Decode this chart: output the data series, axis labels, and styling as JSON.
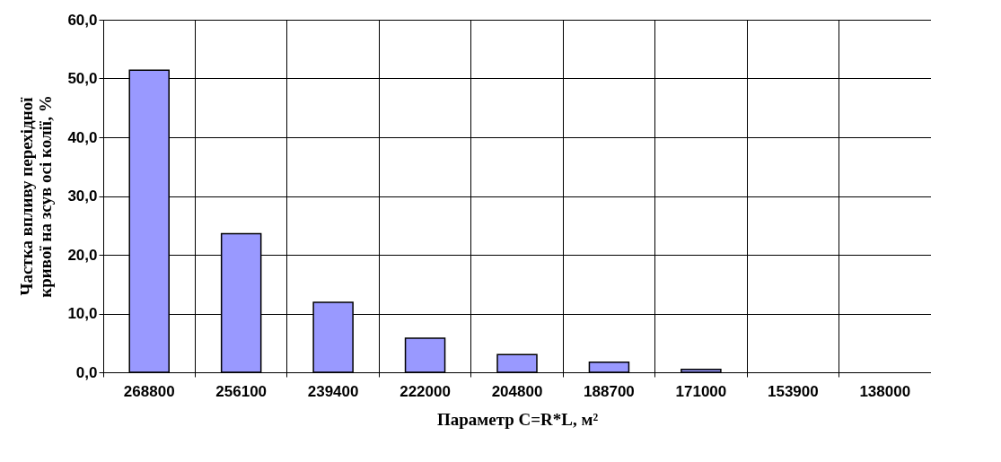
{
  "chart_data": {
    "type": "bar",
    "xlabel": "Параметр C=R*L,  м²",
    "ylabel": "Частка впливу перехідної\nкривої на зсув осі колії, %",
    "categories": [
      "268800",
      "256100",
      "239400",
      "222000",
      "204800",
      "188700",
      "171000",
      "153900",
      "138000"
    ],
    "values": [
      51.4,
      23.6,
      11.9,
      5.8,
      3.0,
      1.7,
      0.5,
      0,
      0
    ],
    "color": "#9999ff",
    "ylim": [
      0,
      60
    ],
    "yticks": [
      {
        "value": 0,
        "label": "0,0"
      },
      {
        "value": 10,
        "label": "10,0"
      },
      {
        "value": 20,
        "label": "20,0"
      },
      {
        "value": 30,
        "label": "30,0"
      },
      {
        "value": 40,
        "label": "40,0"
      },
      {
        "value": 50,
        "label": "50,0"
      },
      {
        "value": 60,
        "label": "60,0"
      }
    ],
    "grid": true
  }
}
